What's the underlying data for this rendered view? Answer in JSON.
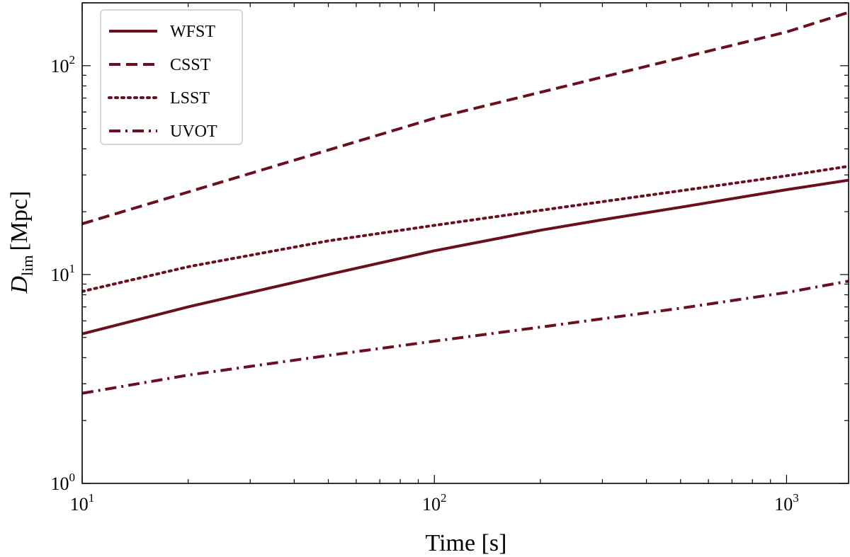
{
  "chart_data": {
    "type": "line",
    "xscale": "log",
    "yscale": "log",
    "xlim": [
      10,
      1500
    ],
    "ylim": [
      1,
      200
    ],
    "xlabel": "Time [s]",
    "ylabel_main": "D",
    "ylabel_sub": "lim",
    "ylabel_unit": "[Mpc]",
    "x_ticks": [
      {
        "value": 10,
        "base": "10",
        "exp": "1"
      },
      {
        "value": 100,
        "base": "10",
        "exp": "2"
      },
      {
        "value": 1000,
        "base": "10",
        "exp": "3"
      }
    ],
    "y_ticks": [
      {
        "value": 1,
        "base": "10",
        "exp": "0"
      },
      {
        "value": 10,
        "base": "10",
        "exp": "1"
      },
      {
        "value": 100,
        "base": "10",
        "exp": "2"
      }
    ],
    "grid": false,
    "legend_position": "top-left",
    "line_color": "#6b0f1f",
    "series": [
      {
        "name": "WFST",
        "style": "solid",
        "x": [
          10,
          20,
          30,
          50,
          100,
          200,
          300,
          500,
          1000,
          1500
        ],
        "y": [
          5.2,
          7.0,
          8.2,
          10.0,
          13.0,
          16.3,
          18.3,
          21.0,
          25.5,
          28.3
        ]
      },
      {
        "name": "CSST",
        "style": "dashed",
        "x": [
          10,
          100,
          1000,
          1500
        ],
        "y": [
          17.5,
          56,
          145,
          180
        ]
      },
      {
        "name": "LSST",
        "style": "dotted",
        "x": [
          10,
          20,
          50,
          100,
          200,
          500,
          1000,
          1500
        ],
        "y": [
          8.3,
          10.9,
          14.5,
          17.2,
          20.3,
          25.2,
          29.7,
          33.0
        ]
      },
      {
        "name": "UVOT",
        "style": "dashdot",
        "x": [
          10,
          20,
          50,
          100,
          200,
          500,
          1000,
          1500
        ],
        "y": [
          2.7,
          3.3,
          4.1,
          4.8,
          5.6,
          6.9,
          8.2,
          9.3
        ]
      }
    ]
  }
}
